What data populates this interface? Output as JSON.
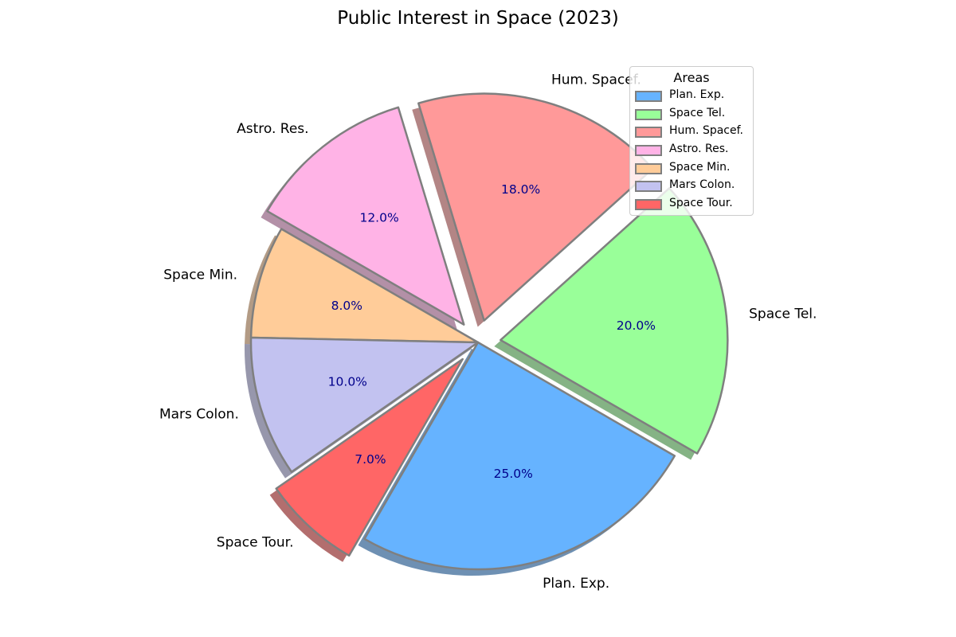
{
  "chart_data": {
    "type": "pie",
    "title": "Public Interest in Space (2023)",
    "categories": [
      "Plan. Exp.",
      "Space Tel.",
      "Hum. Spacef.",
      "Astro. Res.",
      "Space Min.",
      "Mars Colon.",
      "Space Tour."
    ],
    "values": [
      25.0,
      20.0,
      18.0,
      12.0,
      8.0,
      10.0,
      7.0
    ],
    "percent_labels": [
      "25.0%",
      "20.0%",
      "18.0%",
      "12.0%",
      "8.0%",
      "10.0%",
      "7.0%"
    ],
    "colors": [
      "#66b3ff",
      "#99ff99",
      "#ff9999",
      "#ffb3e6",
      "#ffcc99",
      "#c2c2f0",
      "#ff6666"
    ],
    "exploded": [
      false,
      true,
      true,
      true,
      false,
      false,
      true
    ],
    "edge_color": "#7f7f7f",
    "percent_text_color": "#00008b",
    "shadow": true,
    "legend": {
      "title": "Areas",
      "placement": "top-right"
    }
  }
}
